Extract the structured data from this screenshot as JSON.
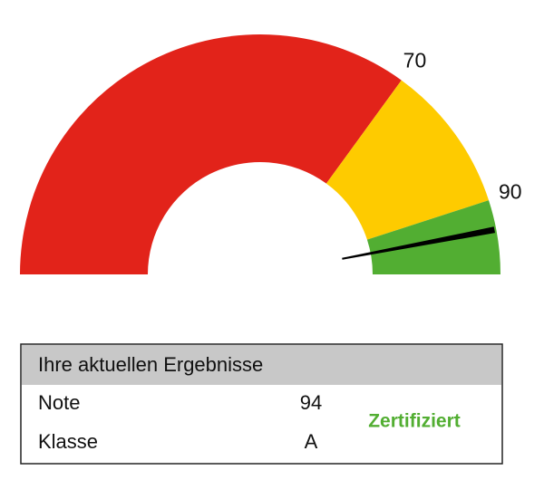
{
  "chart_data": {
    "type": "gauge",
    "ylim": [
      0,
      100
    ],
    "yticks": [
      70,
      90
    ],
    "colors": [
      "#e2231a",
      "#fecb00",
      "#52ae32"
    ],
    "value": 94
  },
  "table": {
    "header": "Ihre aktuellen Ergebnisse",
    "rows": [
      [
        "Note",
        "94"
      ],
      [
        "Klasse",
        "A"
      ]
    ],
    "status": "Zertifiziert"
  }
}
